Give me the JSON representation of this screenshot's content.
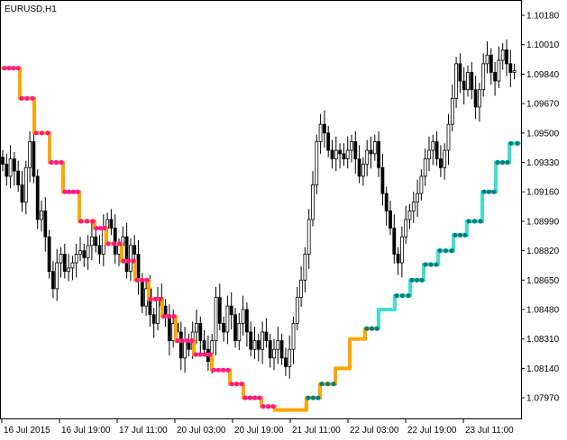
{
  "chart_data": {
    "type": "candlestick",
    "title": "EURUSD,H1",
    "y_ticks": [
      "1.10180",
      "1.10010",
      "1.09840",
      "1.09670",
      "1.09500",
      "1.09330",
      "1.09160",
      "1.08990",
      "1.08820",
      "1.08650",
      "1.08480",
      "1.08310",
      "1.08140",
      "1.07970"
    ],
    "ylim": [
      1.0785,
      1.1025
    ],
    "x_ticks": [
      "16 Jul 2015",
      "16 Jul 19:00",
      "17 Jul 11:00",
      "20 Jul 03:00",
      "20 Jul 19:00",
      "21 Jul 11:00",
      "22 Jul 03:00",
      "22 Jul 19:00",
      "23 Jul 11:00"
    ],
    "close": [
      1.0932,
      1.0925,
      1.0935,
      1.0928,
      1.092,
      1.091,
      1.093,
      1.0945,
      1.0925,
      1.09,
      1.0905,
      1.089,
      1.087,
      1.086,
      1.0875,
      1.088,
      1.087,
      1.0872,
      1.0875,
      1.088,
      1.0882,
      1.0878,
      1.0885,
      1.089,
      1.0885,
      1.088,
      1.0895,
      1.09,
      1.0895,
      1.088,
      1.0885,
      1.089,
      1.087,
      1.0885,
      1.088,
      1.0865,
      1.085,
      1.086,
      1.0845,
      1.084,
      1.0855,
      1.085,
      1.0845,
      1.083,
      1.084,
      1.0835,
      1.082,
      1.083,
      1.0825,
      1.0835,
      1.084,
      1.083,
      1.0825,
      1.0818,
      1.083,
      1.0855,
      1.084,
      1.0835,
      1.085,
      1.0845,
      1.083,
      1.084,
      1.0848,
      1.0835,
      1.0825,
      1.083,
      1.0825,
      1.0835,
      1.083,
      1.082,
      1.0825,
      1.083,
      1.082,
      1.0815,
      1.0825,
      1.084,
      1.0855,
      1.0865,
      1.088,
      1.09,
      1.092,
      1.0945,
      1.0955,
      1.095,
      1.094,
      1.0935,
      1.094,
      1.0938,
      1.0935,
      1.094,
      1.0945,
      1.0935,
      1.0925,
      1.0932,
      1.094,
      1.0938,
      1.0945,
      1.093,
      1.0915,
      1.0905,
      1.0895,
      1.088,
      1.0875,
      1.089,
      1.09,
      1.0905,
      1.091,
      1.0915,
      1.0925,
      1.0935,
      1.094,
      1.0945,
      1.0935,
      1.093,
      1.094,
      1.0955,
      1.097,
      1.099,
      1.098,
      1.0975,
      1.0985,
      1.0975,
      1.0965,
      1.0975,
      1.099,
      1.0995,
      1.0985,
      1.098,
      1.0992,
      1.0998,
      1.099,
      1.0985,
      1.0986
    ]
  }
}
